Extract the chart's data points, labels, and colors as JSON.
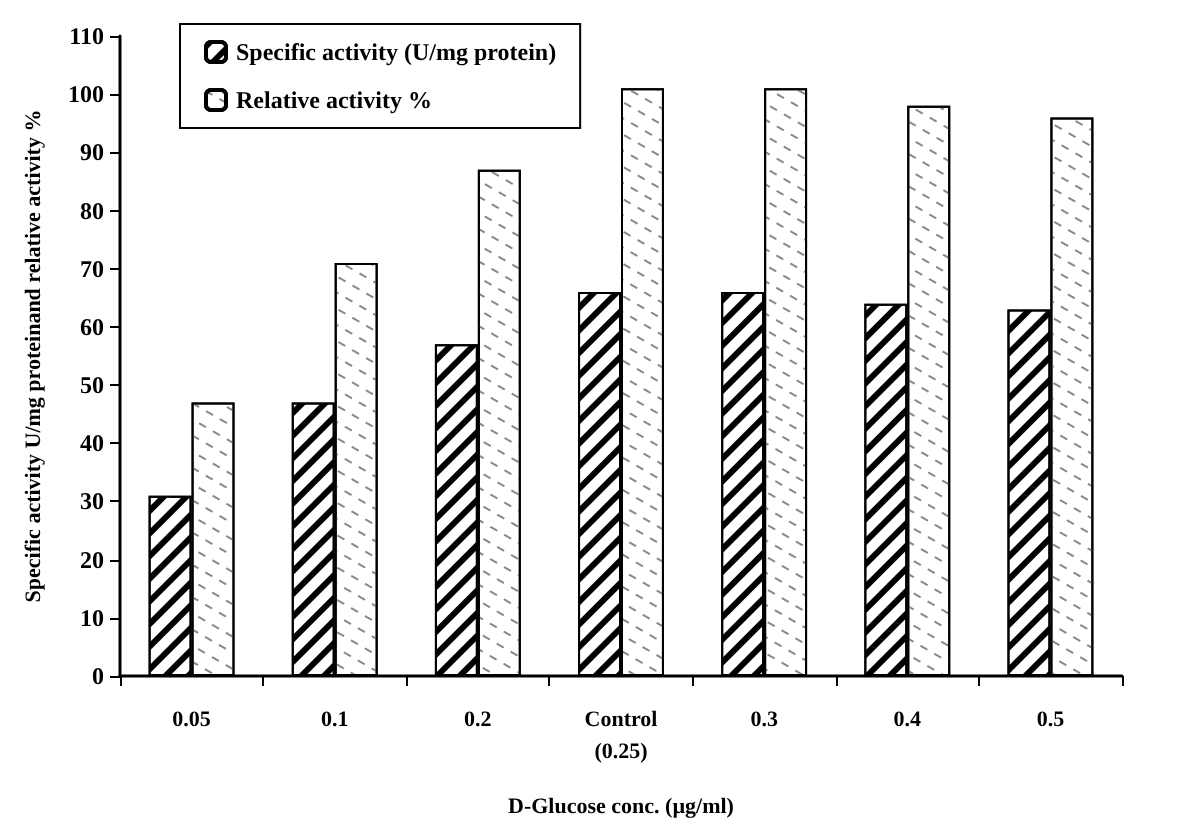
{
  "chart_data": {
    "type": "bar",
    "xlabel": "D-Glucose conc. (µg/ml)",
    "ylabel": "Specific activity U/mg proteinand relative activity %",
    "categories": [
      "0.05",
      "0.1",
      "0.2",
      "Control\n(0.25)",
      "0.3",
      "0.4",
      "0.5"
    ],
    "series": [
      {
        "name": "Specific activity (U/mg protein)",
        "color": "#000000",
        "values": [
          31,
          47,
          57,
          66,
          66,
          64,
          63
        ]
      },
      {
        "name": "Relative activity %",
        "color": "#ffffff",
        "values": [
          47,
          71,
          87,
          101,
          101,
          98,
          96
        ]
      }
    ],
    "ylim": [
      0,
      110
    ],
    "yticks": [
      0,
      10,
      20,
      30,
      40,
      50,
      60,
      70,
      80,
      90,
      100,
      110
    ],
    "grid": false,
    "legend": "top left"
  }
}
